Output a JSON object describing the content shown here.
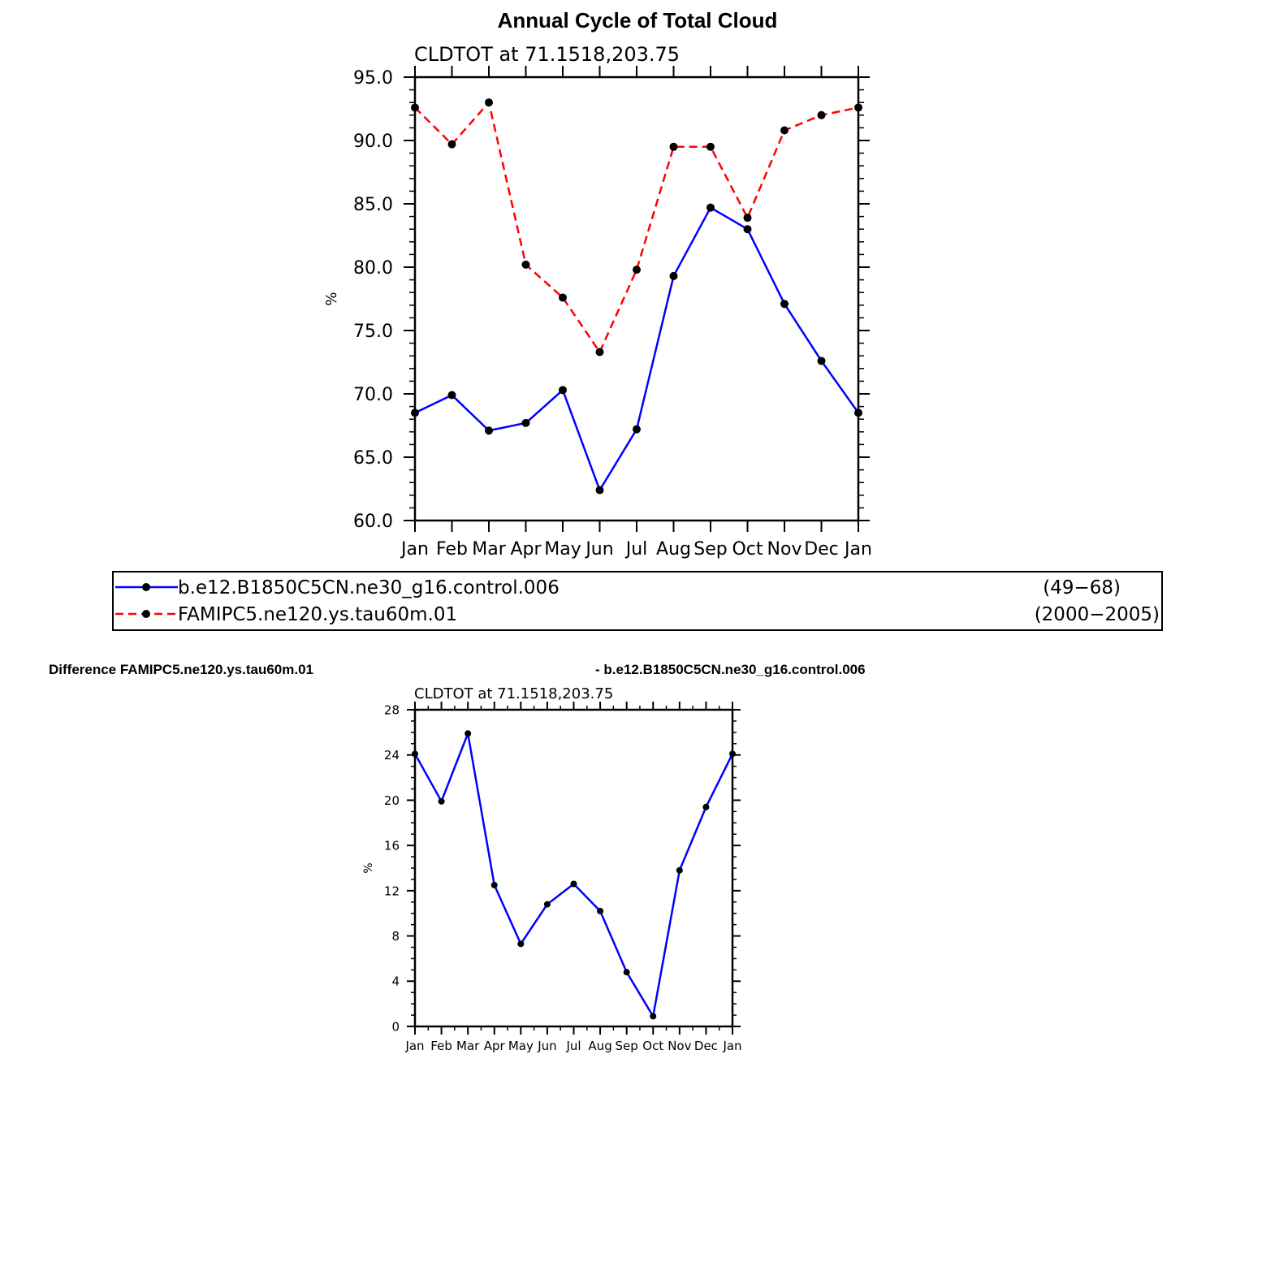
{
  "page": {
    "main_title": "Annual Cycle of Total Cloud",
    "diff_title_left": "Difference FAMIPC5.ne120.ys.tau60m.01",
    "diff_title_right": "- b.e12.B1850C5CN.ne30_g16.control.006"
  },
  "legend": {
    "entries": [
      {
        "label": "b.e12.B1850C5CN.ne30_g16.control.006",
        "years": "(49−68)",
        "color": "#0000ff",
        "dash": "solid"
      },
      {
        "label": "FAMIPC5.ne120.ys.tau60m.01",
        "years": "(2000−2005)",
        "color": "#ff0000",
        "dash": "dashed"
      }
    ],
    "placement": "below-top-chart"
  },
  "chart_data": [
    {
      "type": "line",
      "subtitle": "CLDTOT  at  71.1518,203.75",
      "ylabel": "%",
      "categories": [
        "Jan",
        "Feb",
        "Mar",
        "Apr",
        "May",
        "Jun",
        "Jul",
        "Aug",
        "Sep",
        "Oct",
        "Nov",
        "Dec",
        "Jan"
      ],
      "ylim": [
        60,
        95
      ],
      "yticks": [
        60,
        65,
        70,
        75,
        80,
        85,
        90,
        95
      ],
      "ytick_labels": [
        "60.0",
        "65.0",
        "70.0",
        "75.0",
        "80.0",
        "85.0",
        "90.0",
        "95.0"
      ],
      "grid": false,
      "series": [
        {
          "legend_index": 0,
          "color": "#0000ff",
          "dash": "solid",
          "values": [
            68.5,
            69.9,
            67.1,
            67.7,
            70.3,
            62.4,
            67.2,
            79.3,
            84.7,
            83.0,
            77.1,
            72.6,
            68.5
          ]
        },
        {
          "legend_index": 1,
          "color": "#ff0000",
          "dash": "dashed",
          "values": [
            92.6,
            89.7,
            93.0,
            80.2,
            77.6,
            73.3,
            79.8,
            89.5,
            89.5,
            83.9,
            90.8,
            92.0,
            92.6
          ]
        }
      ]
    },
    {
      "type": "line",
      "subtitle": "CLDTOT  at  71.1518,203.75",
      "ylabel": "%",
      "categories": [
        "Jan",
        "Feb",
        "Mar",
        "Apr",
        "May",
        "Jun",
        "Jul",
        "Aug",
        "Sep",
        "Oct",
        "Nov",
        "Dec",
        "Jan"
      ],
      "ylim": [
        0,
        28
      ],
      "yticks": [
        0,
        4,
        8,
        12,
        16,
        20,
        24,
        28
      ],
      "ytick_labels": [
        "0",
        "4",
        "8",
        "12",
        "16",
        "20",
        "24",
        "28"
      ],
      "grid": false,
      "series": [
        {
          "color": "#0000ff",
          "dash": "solid",
          "values": [
            24.1,
            19.9,
            25.9,
            12.5,
            7.3,
            10.8,
            12.6,
            10.2,
            4.8,
            0.9,
            13.8,
            19.4,
            24.1
          ]
        }
      ]
    }
  ]
}
